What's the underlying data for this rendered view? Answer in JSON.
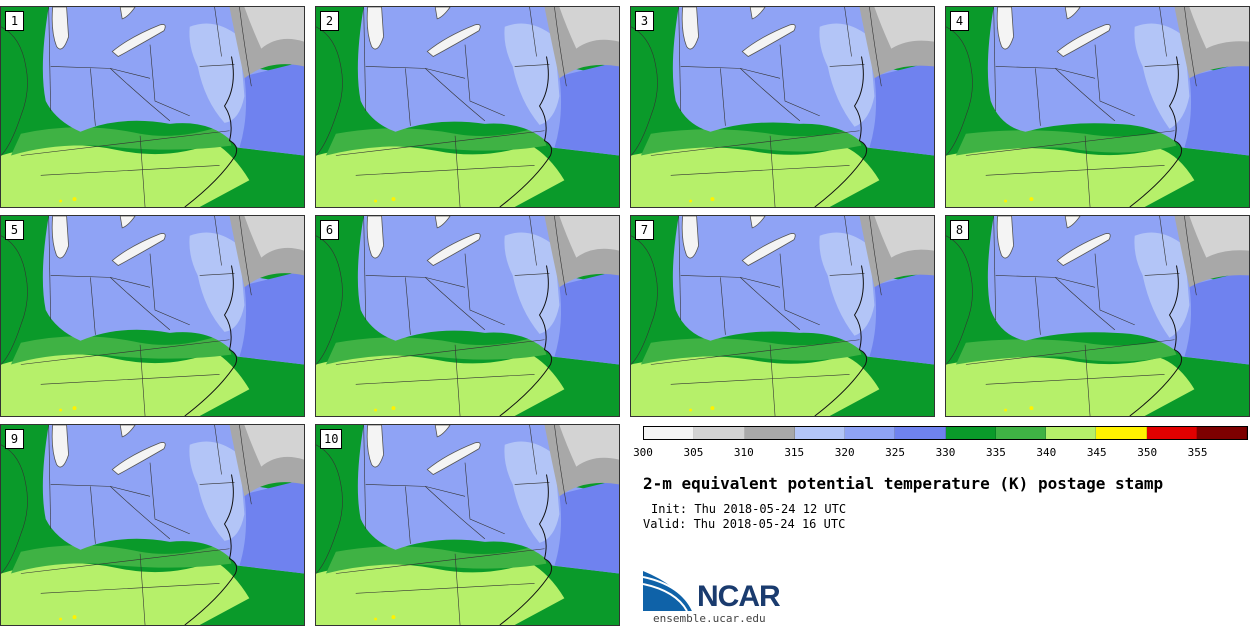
{
  "members": [
    {
      "label": "1"
    },
    {
      "label": "2"
    },
    {
      "label": "3"
    },
    {
      "label": "4"
    },
    {
      "label": "5"
    },
    {
      "label": "6"
    },
    {
      "label": "7"
    },
    {
      "label": "8"
    },
    {
      "label": "9"
    },
    {
      "label": "10"
    }
  ],
  "colorbar": {
    "colors": [
      "#f4f4f4",
      "#d3d3d3",
      "#a8a8a8",
      "#b3c5f7",
      "#8fa3f5",
      "#6f82ef",
      "#0a9a2a",
      "#3fb244",
      "#b6f06a",
      "#fff200",
      "#e10000",
      "#7d0000"
    ],
    "ticks": [
      "300",
      "305",
      "310",
      "315",
      "320",
      "325",
      "330",
      "335",
      "340",
      "345",
      "350",
      "355"
    ]
  },
  "title": "2-m equivalent potential temperature (K) postage stamp",
  "init": "Init: Thu 2018-05-24 12 UTC",
  "valid": "Valid: Thu 2018-05-24 16 UTC",
  "logo": {
    "name": "NCAR",
    "url": "ensemble.ucar.edu"
  },
  "colors": {
    "green_dark": "#0a9a2a",
    "green_mid": "#3fb244",
    "green_light": "#b6f06a",
    "blue_dark": "#6f82ef",
    "blue_mid": "#8fa3f5",
    "blue_light": "#b3c5f7",
    "gray_dark": "#a8a8a8",
    "gray_light": "#d3d3d3",
    "white": "#f4f4f4",
    "yellow": "#fff200"
  }
}
